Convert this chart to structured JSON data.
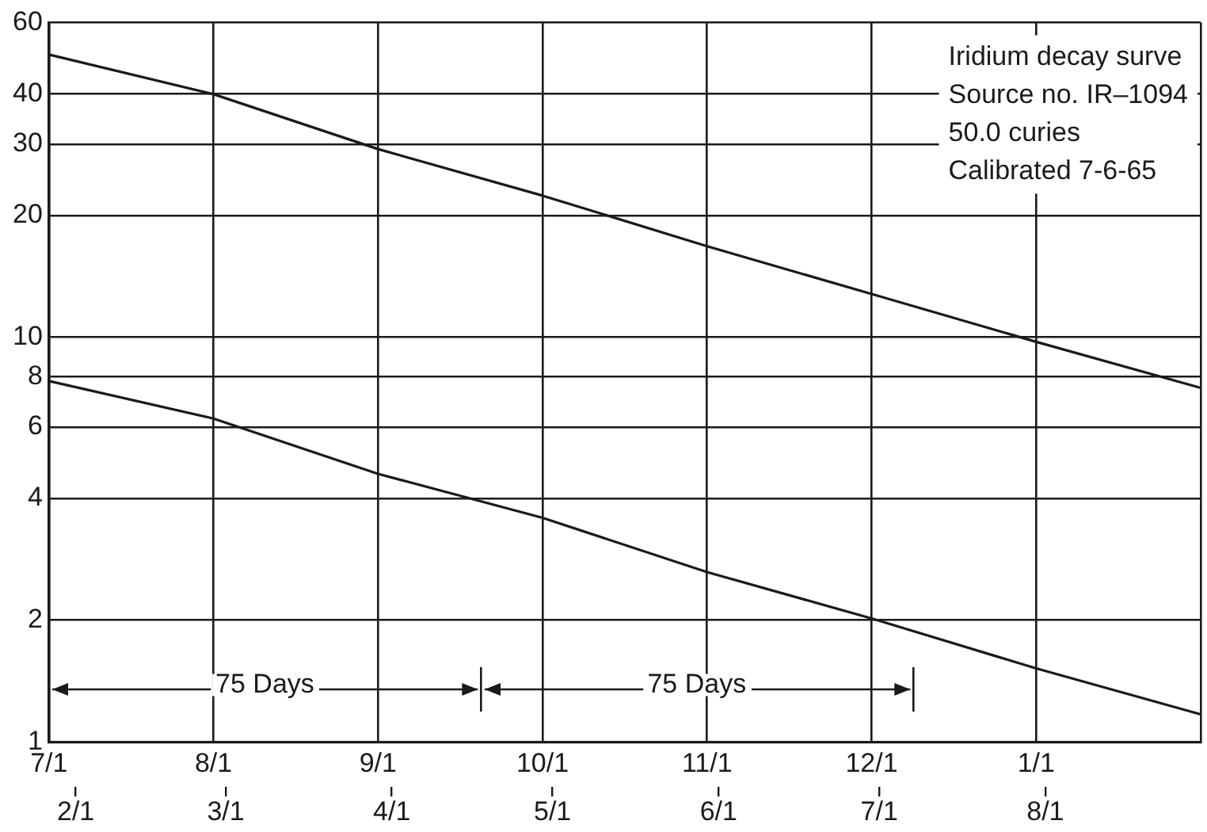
{
  "chart_data": {
    "type": "line",
    "categories": [
      "7/1",
      "8/1",
      "9/1",
      "10/1",
      "11/1",
      "12/1",
      "1/1",
      null
    ],
    "series": [
      {
        "color": "#1a1a1a",
        "values": [
          50,
          39.9,
          29.2,
          22.4,
          16.8,
          12.8,
          9.75,
          7.5
        ]
      },
      {
        "color": "#1a1a1a",
        "values": [
          7.8,
          6.3,
          4.6,
          3.58,
          2.63,
          2.02,
          1.52,
          1.17
        ]
      }
    ],
    "x2lim": [
      "--01-27",
      "--08-30"
    ],
    "x2ticks": [
      {
        "value": "--02-01",
        "label": "2/1"
      },
      {
        "value": "--03-01",
        "label": "3/1"
      },
      {
        "value": "--04-01",
        "label": "4/1"
      },
      {
        "value": "--05-01",
        "label": "5/1"
      },
      {
        "value": "--06-01",
        "label": "6/1"
      },
      {
        "value": "--07-01",
        "label": "7/1"
      },
      {
        "value": "--08-01",
        "label": "8/1"
      }
    ],
    "ylim": [
      1,
      60
    ],
    "yticks": [
      1,
      2,
      4,
      6,
      8,
      10,
      20,
      30,
      40,
      60
    ],
    "log": "y",
    "grid": true,
    "annotations": [
      "Iridium decay surve",
      "Source no. IR–1094",
      "50.0 curies",
      "Calibrated 7-6-65",
      "75 Days",
      "75 Days"
    ]
  }
}
